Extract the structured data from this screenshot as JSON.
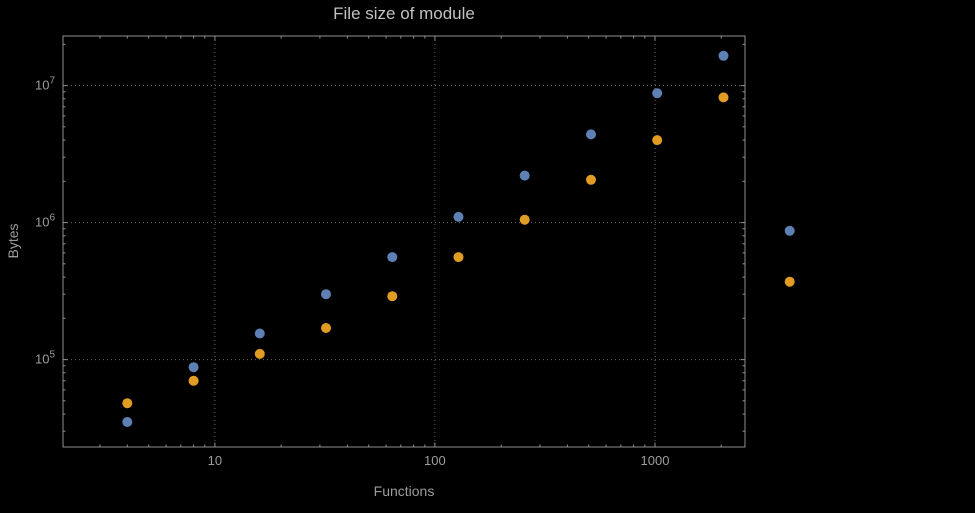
{
  "title": "File size of module",
  "axes": {
    "x_label": "Functions",
    "y_label": "Bytes",
    "x_ticks": [
      10,
      100,
      1000
    ],
    "y_ticks_exponents": [
      5,
      6,
      7
    ]
  },
  "colors": {
    "background": "#000000",
    "frame": "#8f8f8f",
    "grid": "#6a6a6a",
    "text": "#9c9c9c",
    "title": "#c2c2c2",
    "series1": "#5e81b5",
    "series2": "#e19c24"
  },
  "chart_data": {
    "type": "scatter",
    "title": "File size of module",
    "xlabel": "Functions",
    "ylabel": "Bytes",
    "x_scale": "log",
    "y_scale": "log",
    "grid": "dotted lines at decade ticks, frame with inward ticks, no legend",
    "legend": "none",
    "xlim": [
      2.04,
      2566
    ],
    "ylim": [
      23000,
      23000000
    ],
    "x": [
      4,
      8,
      16,
      32,
      64,
      128,
      256,
      512,
      1024,
      2048,
      4096
    ],
    "series": [
      {
        "name": "series-1-blue",
        "color": "#5e81b5",
        "values": [
          35000,
          88000,
          155000,
          300000,
          560000,
          1100000,
          2200000,
          4400000,
          8800000,
          16500000,
          870000
        ]
      },
      {
        "name": "series-2-orange",
        "color": "#e19c24",
        "values": [
          48000,
          70000,
          110000,
          170000,
          290000,
          560000,
          1050000,
          2050000,
          4000000,
          8200000,
          370000
        ]
      }
    ]
  }
}
